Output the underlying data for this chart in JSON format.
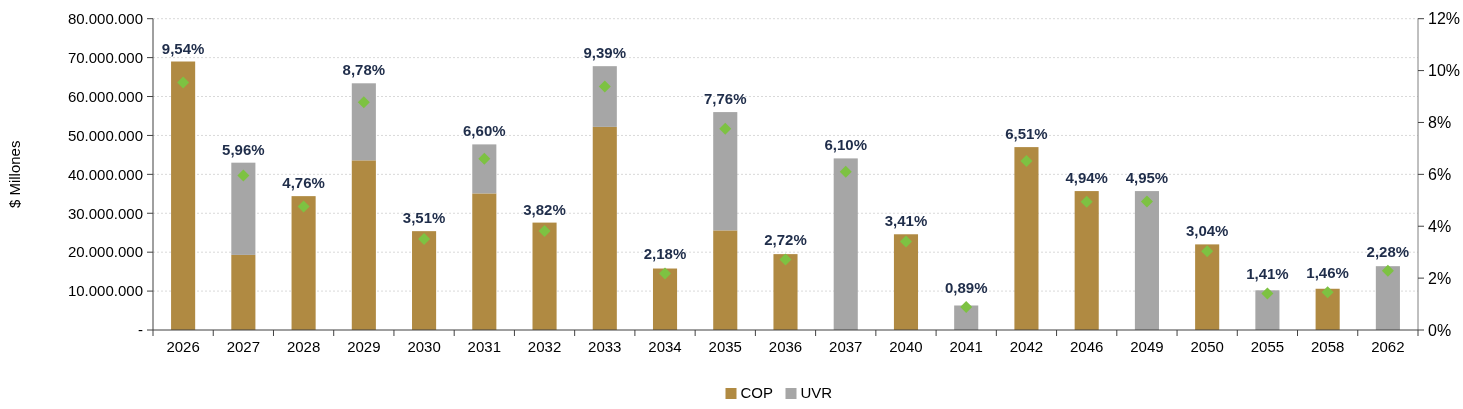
{
  "chart_data": {
    "type": "bar",
    "stacked": true,
    "ylabel": "$ Millones",
    "categories": [
      "2026",
      "2027",
      "2028",
      "2029",
      "2030",
      "2031",
      "2032",
      "2033",
      "2034",
      "2035",
      "2036",
      "2037",
      "2040",
      "2041",
      "2042",
      "2046",
      "2049",
      "2050",
      "2055",
      "2058",
      "2062"
    ],
    "series": [
      {
        "name": "COP",
        "color": "#b08a42",
        "values": [
          69000000,
          19300000,
          34400000,
          43600000,
          25400000,
          35100000,
          27600000,
          52200000,
          15800000,
          25600000,
          19500000,
          null,
          24600000,
          null,
          47000000,
          35700000,
          null,
          22000000,
          null,
          10600000,
          null
        ]
      },
      {
        "name": "UVR",
        "color": "#a6a6a6",
        "values": [
          null,
          23700000,
          null,
          19800000,
          null,
          12600000,
          null,
          15600000,
          null,
          30400000,
          null,
          44100000,
          null,
          6300000,
          null,
          null,
          35700000,
          null,
          10200000,
          null,
          16400000
        ]
      },
      {
        "type": "scatter",
        "axis": "y2",
        "color": "#7dc242",
        "marker": "diamond",
        "values": [
          9.54,
          5.96,
          4.76,
          8.78,
          3.51,
          6.6,
          3.82,
          9.39,
          2.18,
          7.76,
          2.72,
          6.1,
          3.41,
          0.89,
          6.51,
          4.94,
          4.95,
          3.04,
          1.41,
          1.46,
          2.28
        ],
        "value_labels": [
          "9,54%",
          "5,96%",
          "4,76%",
          "8,78%",
          "3,51%",
          "6,60%",
          "3,82%",
          "9,39%",
          "2,18%",
          "7,76%",
          "2,72%",
          "6,10%",
          "3,41%",
          "0,89%",
          "6,51%",
          "4,94%",
          "4,95%",
          "3,04%",
          "1,41%",
          "1,46%",
          "2,28%"
        ]
      }
    ],
    "ylim": [
      0,
      80000000
    ],
    "yticks": [
      {
        "value": 0,
        "label": "-"
      },
      {
        "value": 10000000,
        "label": "10.000.000"
      },
      {
        "value": 20000000,
        "label": "20.000.000"
      },
      {
        "value": 30000000,
        "label": "30.000.000"
      },
      {
        "value": 40000000,
        "label": "40.000.000"
      },
      {
        "value": 50000000,
        "label": "50.000.000"
      },
      {
        "value": 60000000,
        "label": "60.000.000"
      },
      {
        "value": 70000000,
        "label": "70.000.000"
      },
      {
        "value": 80000000,
        "label": "80.000.000"
      }
    ],
    "y2lim": [
      0,
      12
    ],
    "y2ticks": [
      {
        "value": 0,
        "label": "0%"
      },
      {
        "value": 2,
        "label": "2%"
      },
      {
        "value": 4,
        "label": "4%"
      },
      {
        "value": 6,
        "label": "6%"
      },
      {
        "value": 8,
        "label": "8%"
      },
      {
        "value": 10,
        "label": "10%"
      },
      {
        "value": 12,
        "label": "12%"
      }
    ],
    "grid": "y",
    "legend": "bottom"
  }
}
